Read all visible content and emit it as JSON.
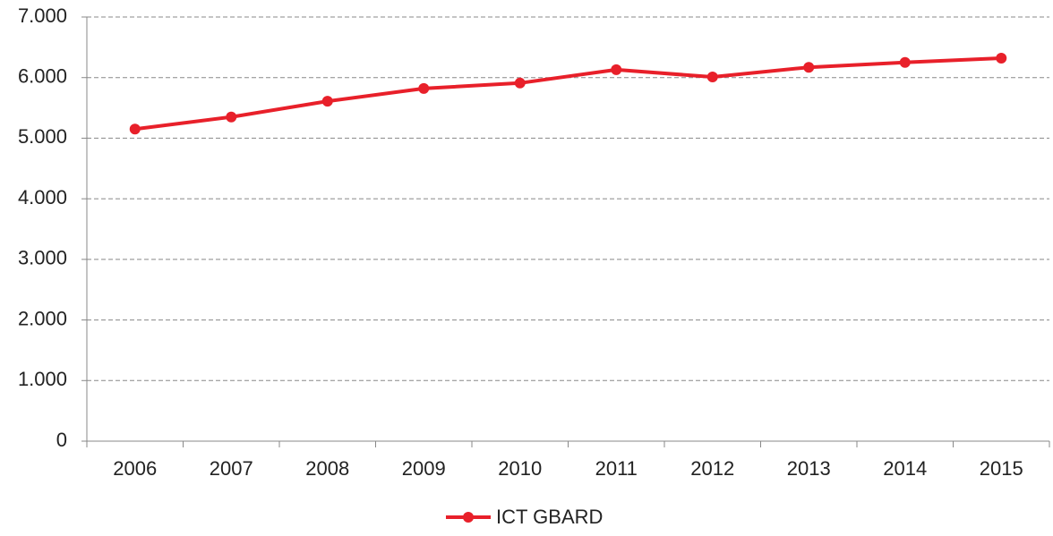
{
  "chart_data": {
    "type": "line",
    "categories": [
      "2006",
      "2007",
      "2008",
      "2009",
      "2010",
      "2011",
      "2012",
      "2013",
      "2014",
      "2015"
    ],
    "series": [
      {
        "name": "ICT GBARD",
        "color": "#e8202a",
        "values": [
          5150,
          5350,
          5610,
          5820,
          5910,
          6130,
          6010,
          6170,
          6250,
          6320
        ]
      }
    ],
    "ylim": [
      0,
      7000
    ],
    "yticks": [
      0,
      {
        "value": 1000,
        "label": "1.000"
      },
      {
        "value": 2000,
        "label": "2.000"
      },
      {
        "value": 3000,
        "label": "3.000"
      },
      {
        "value": 4000,
        "label": "4.000"
      },
      {
        "value": 5000,
        "label": "5.000"
      },
      {
        "value": 6000,
        "label": "6.000"
      },
      {
        "value": 7000,
        "label": "7.000"
      }
    ],
    "grid": true,
    "legend": "bottom"
  }
}
